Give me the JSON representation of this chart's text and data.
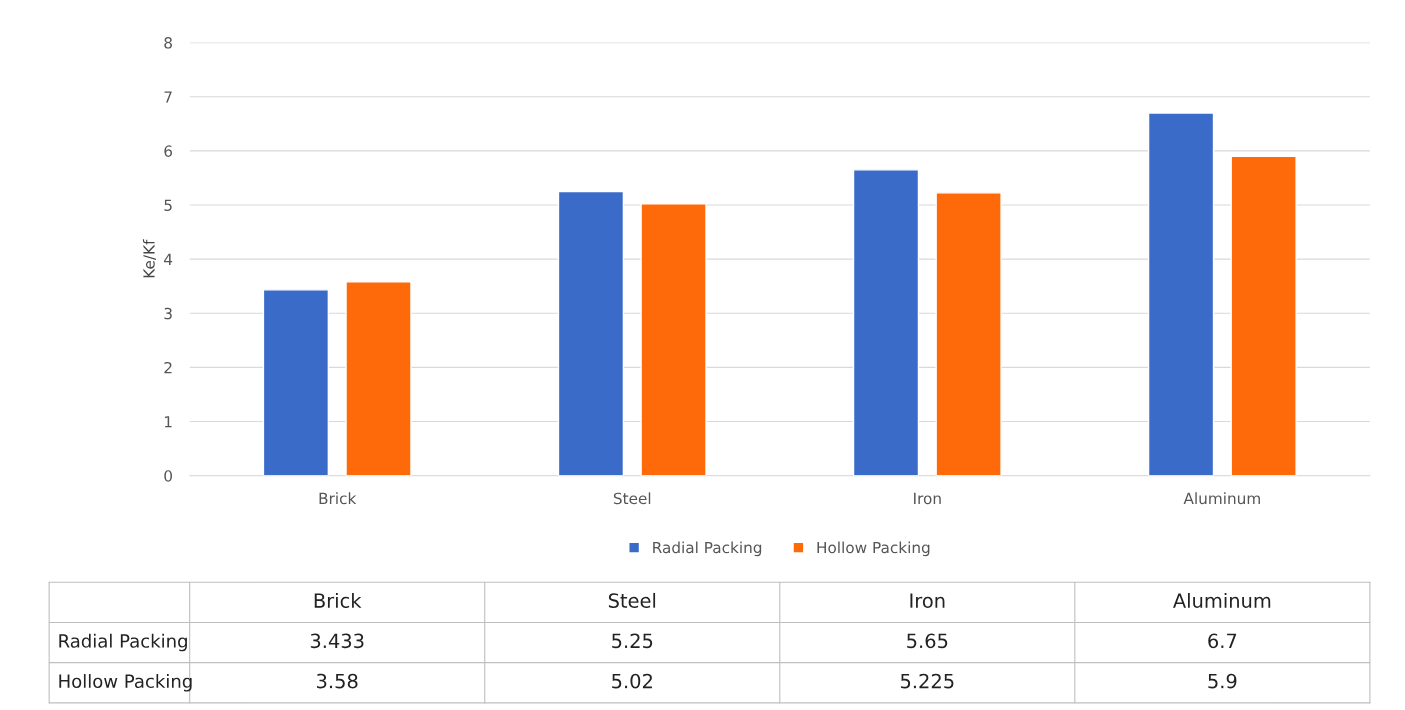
{
  "chart_data": {
    "type": "bar",
    "ylabel": "Ke/Kf",
    "categories": [
      "Brick",
      "Steel",
      "Iron",
      "Aluminum"
    ],
    "series": [
      {
        "name": "Radial Packing",
        "color": "#3a6bc8",
        "values": [
          3.433,
          5.25,
          5.65,
          6.7
        ]
      },
      {
        "name": "Hollow Packing",
        "color": "#fe6a0a",
        "values": [
          3.58,
          5.02,
          5.225,
          5.9
        ]
      }
    ],
    "ylim": [
      0,
      8
    ],
    "yticks": [
      0,
      1,
      2,
      3,
      4,
      5,
      6,
      7,
      8
    ],
    "grid": "y",
    "legend": "bottom",
    "data_labels": true
  }
}
